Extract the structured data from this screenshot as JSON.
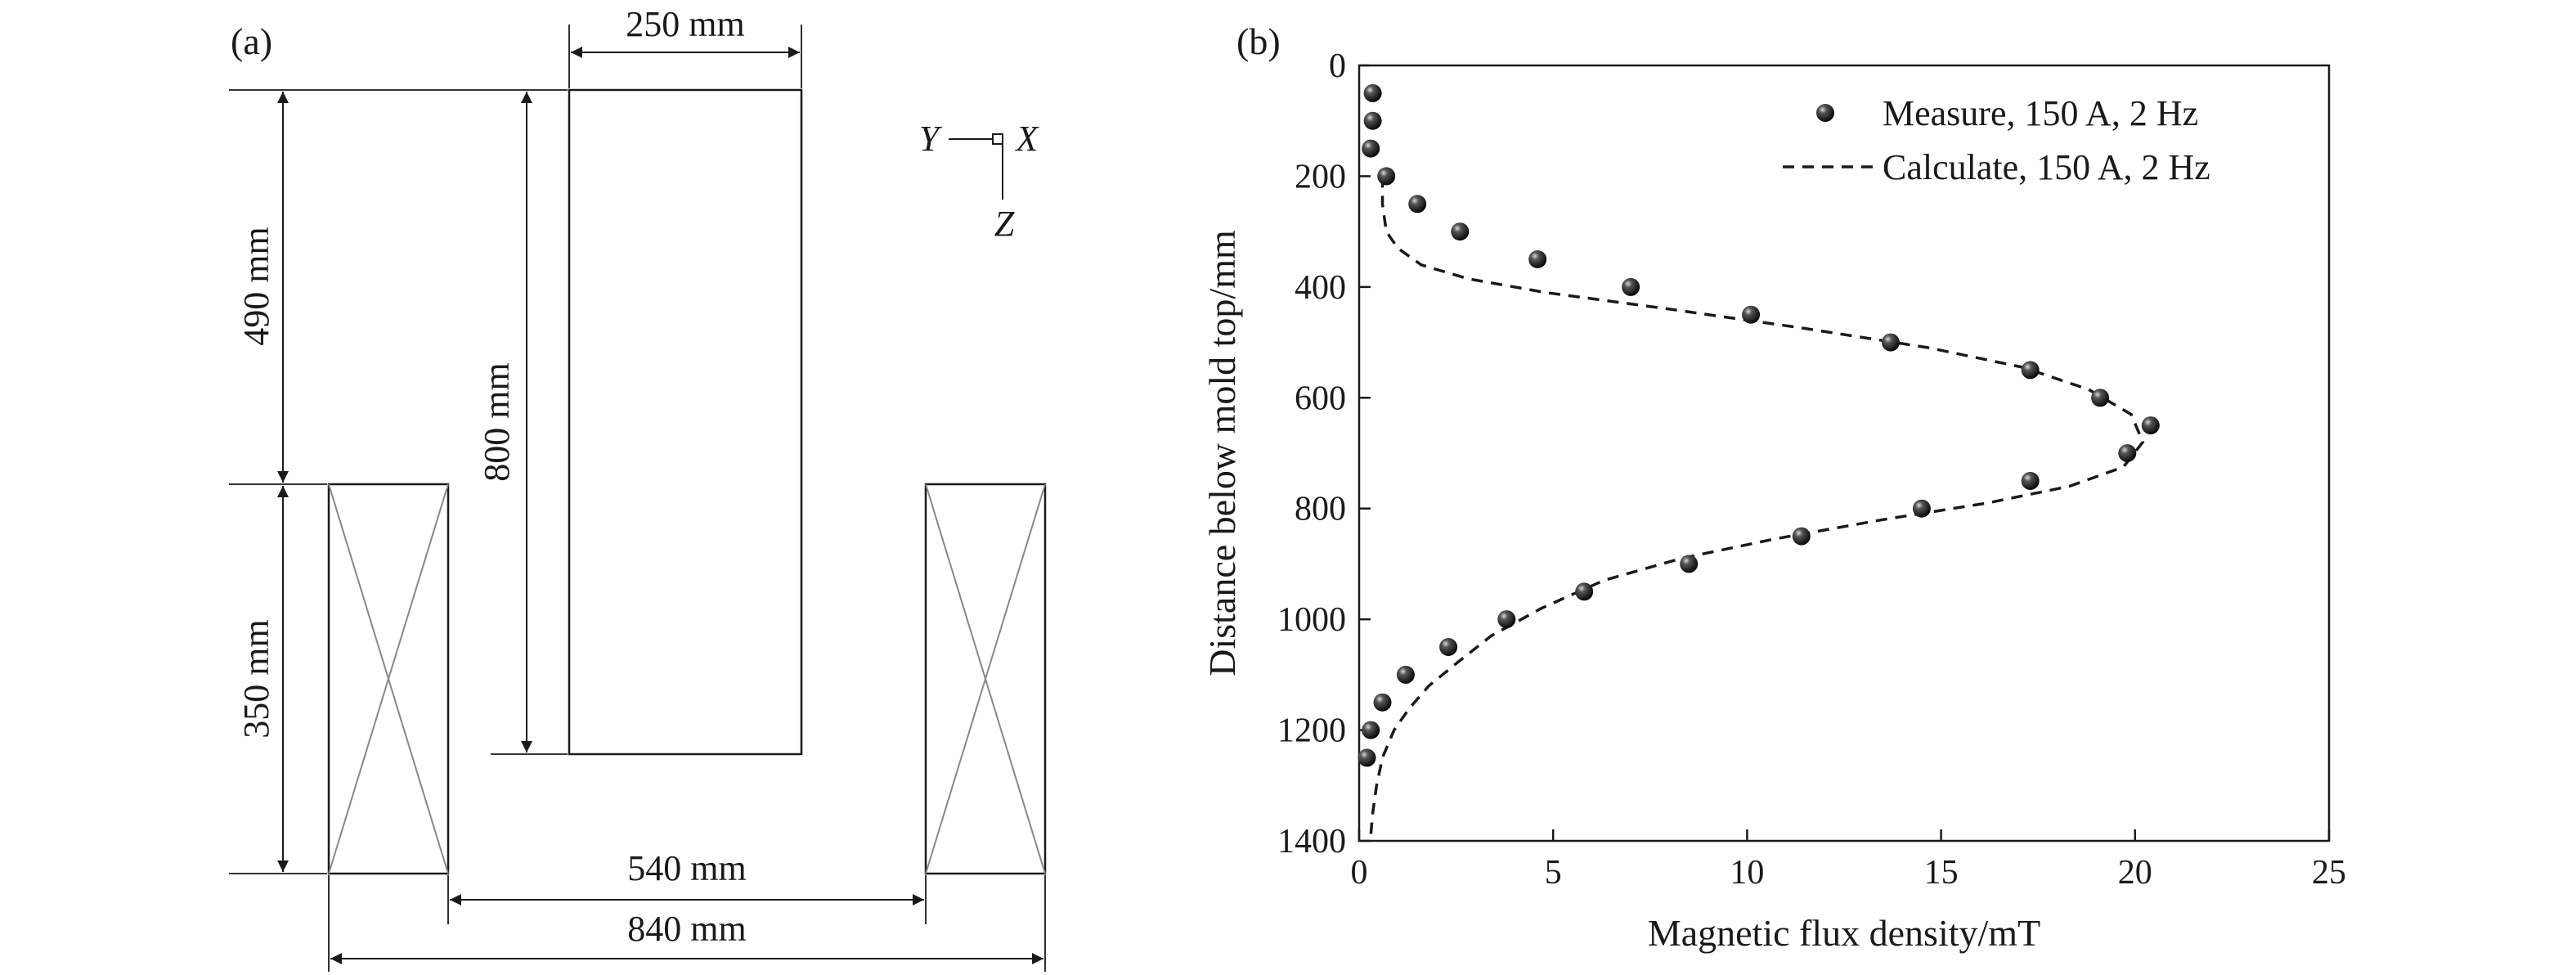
{
  "panel_a": {
    "label": "(a)",
    "dimensions": {
      "mold_width": "250 mm",
      "mold_height": "800 mm",
      "coil_top_offset": "490 mm",
      "coil_height": "350 mm",
      "coil_inner_gap": "540 mm",
      "coil_outer_span": "840 mm"
    },
    "axes": {
      "y": "Y",
      "x": "X",
      "z": "Z"
    }
  },
  "panel_b": {
    "label": "(b)"
  },
  "chart_data": {
    "type": "scatter",
    "xlabel": "Magnetic flux density/mT",
    "ylabel": "Distance below mold top/mm",
    "xlim": [
      0,
      25
    ],
    "ylim": [
      0,
      1400
    ],
    "y_inverted": true,
    "x_ticks": [
      "0",
      "5",
      "10",
      "15",
      "20",
      "25"
    ],
    "y_ticks": [
      "0",
      "200",
      "400",
      "600",
      "800",
      "1000",
      "1200",
      "1400"
    ],
    "legend_position": "top-right",
    "series": [
      {
        "name": "Measure, 150 A, 2 Hz",
        "style": "markers",
        "x": [
          0.35,
          0.35,
          0.3,
          0.7,
          1.5,
          2.6,
          4.6,
          7.0,
          10.1,
          13.7,
          17.3,
          19.1,
          20.4,
          19.8,
          17.3,
          14.5,
          11.4,
          8.5,
          5.8,
          3.8,
          2.3,
          1.2,
          0.6,
          0.3,
          0.2
        ],
        "y": [
          50,
          100,
          150,
          200,
          250,
          300,
          350,
          400,
          450,
          500,
          550,
          600,
          650,
          700,
          750,
          800,
          850,
          900,
          950,
          1000,
          1050,
          1100,
          1150,
          1200,
          1250
        ]
      },
      {
        "name": "Calculate, 150 A, 2 Hz",
        "style": "dashed-line",
        "x": [
          0.6,
          0.6,
          0.7,
          1.0,
          1.6,
          2.8,
          4.8,
          8.0,
          11.5,
          14.7,
          17.1,
          18.8,
          19.9,
          20.2,
          19.7,
          18.3,
          16.2,
          13.5,
          10.7,
          8.3,
          6.3,
          4.7,
          3.4,
          2.5,
          1.8,
          1.3,
          0.9,
          0.6,
          0.45,
          0.35,
          0.3
        ],
        "y": [
          200,
          250,
          300,
          330,
          360,
          385,
          410,
          440,
          475,
          510,
          545,
          585,
          630,
          680,
          725,
          760,
          790,
          820,
          855,
          890,
          930,
          980,
          1030,
          1080,
          1120,
          1160,
          1200,
          1250,
          1300,
          1350,
          1390
        ]
      }
    ]
  }
}
